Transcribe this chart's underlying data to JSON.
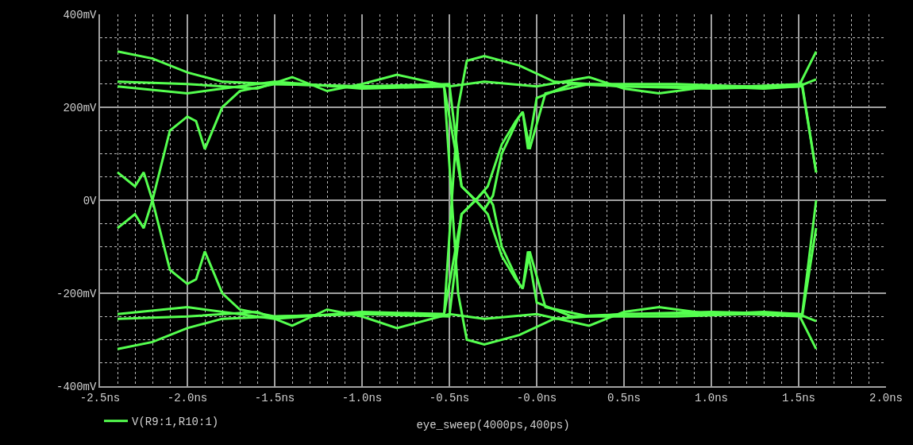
{
  "chart_data": {
    "type": "line",
    "xlabel": "eye_sweep(4000ps,400ps)",
    "xlim": [
      -2.5,
      2.0
    ],
    "xticks": [
      {
        "value": -2.5,
        "label": "-2.5ns"
      },
      {
        "value": -2.0,
        "label": "-2.0ns"
      },
      {
        "value": -1.5,
        "label": "-1.5ns"
      },
      {
        "value": -1.0,
        "label": "-1.0ns"
      },
      {
        "value": -0.5,
        "label": "-0.5ns"
      },
      {
        "value": 0,
        "label": "-0.0ns"
      },
      {
        "value": 0.5,
        "label": "0.5ns"
      },
      {
        "value": 1.0,
        "label": "1.0ns"
      },
      {
        "value": 1.5,
        "label": "1.5ns"
      },
      {
        "value": 2.0,
        "label": "2.0ns"
      }
    ],
    "ylim": [
      -400,
      400
    ],
    "yticks": [
      {
        "value": -400,
        "label": "-400mV"
      },
      {
        "value": -200,
        "label": "-200mV"
      },
      {
        "value": 0,
        "label": "0V"
      },
      {
        "value": 200,
        "label": "200mV"
      },
      {
        "value": 400,
        "label": "400mV"
      }
    ],
    "grid": true,
    "legend": "bottom left",
    "marker": "none",
    "line_style": "solid",
    "series": [
      {
        "name": "V(R9:1,R10:1)",
        "color": "#55ff4f",
        "x": [
          -2.4,
          -2.0,
          -1.6,
          -1.4,
          -1.2,
          -1.0,
          -0.8,
          -0.5,
          -0.3,
          0.0,
          0.3,
          0.5,
          0.7,
          1.0,
          1.3,
          1.5,
          1.6
        ],
        "values": [
          255,
          250,
          240,
          265,
          235,
          250,
          270,
          245,
          255,
          245,
          265,
          240,
          230,
          245,
          240,
          245,
          260
        ]
      },
      {
        "color": "#55ff4f",
        "x": [
          -2.4,
          -2.0,
          -1.6,
          -1.4,
          -1.2,
          -1.0,
          -0.8,
          -0.5,
          -0.3,
          0.0,
          0.3,
          0.5,
          0.7,
          1.0,
          1.3,
          1.5,
          1.6
        ],
        "values": [
          -255,
          -250,
          -240,
          -270,
          -235,
          -250,
          -275,
          -245,
          -255,
          -245,
          -270,
          -240,
          -230,
          -245,
          -240,
          -245,
          -260
        ]
      },
      {
        "color": "#55ff4f",
        "x": [
          -2.4,
          -2.2,
          -2.0,
          -1.8,
          -1.5,
          -1.0,
          -0.53,
          -0.45,
          -0.4,
          -0.3,
          -0.1,
          0.1,
          0.5,
          1.0,
          1.52,
          1.6
        ],
        "values": [
          320,
          305,
          275,
          255,
          250,
          245,
          245,
          -200,
          -300,
          -310,
          -290,
          -255,
          -245,
          -245,
          -245,
          0
        ]
      },
      {
        "color": "#55ff4f",
        "x": [
          -2.4,
          -2.2,
          -2.0,
          -1.8,
          -1.5,
          -1.0,
          -0.53,
          -0.45,
          -0.4,
          -0.3,
          -0.1,
          0.1,
          0.5,
          1.0,
          1.52,
          1.6
        ],
        "values": [
          -320,
          -305,
          -275,
          -255,
          -250,
          -245,
          -245,
          200,
          300,
          310,
          290,
          255,
          245,
          245,
          245,
          60
        ]
      },
      {
        "color": "#55ff4f",
        "x": [
          -2.4,
          -2.3,
          -2.25,
          -2.2,
          -2.1,
          -2.0,
          -1.95,
          -1.9,
          -1.8,
          -1.7,
          -1.5,
          -1.0,
          -0.5,
          -0.43,
          -0.35,
          -0.3,
          -0.25,
          -0.2,
          -0.1,
          -0.08,
          -0.05,
          0.0,
          0.2,
          0.5,
          1.0,
          1.5,
          1.6
        ],
        "values": [
          60,
          30,
          60,
          0,
          -150,
          -180,
          -170,
          -110,
          -200,
          -235,
          -250,
          -245,
          -250,
          -30,
          0,
          20,
          -10,
          -100,
          -180,
          -190,
          -110,
          -220,
          -250,
          -245,
          -240,
          -245,
          -320
        ]
      },
      {
        "color": "#55ff4f",
        "x": [
          -2.4,
          -2.3,
          -2.25,
          -2.2,
          -2.1,
          -2.0,
          -1.95,
          -1.9,
          -1.8,
          -1.7,
          -1.5,
          -1.0,
          -0.5,
          -0.43,
          -0.35,
          -0.3,
          -0.25,
          -0.2,
          -0.1,
          -0.08,
          -0.05,
          0.0,
          0.2,
          0.5,
          1.0,
          1.5,
          1.6
        ],
        "values": [
          -60,
          -30,
          -60,
          0,
          150,
          180,
          170,
          110,
          200,
          235,
          250,
          245,
          250,
          30,
          0,
          -20,
          10,
          100,
          180,
          190,
          110,
          220,
          250,
          245,
          240,
          245,
          320
        ]
      },
      {
        "color": "#55ff4f",
        "x": [
          -2.4,
          -2.0,
          -1.5,
          -1.0,
          -0.53,
          -0.43,
          -0.35,
          -0.28,
          -0.2,
          -0.12,
          -0.08,
          -0.04,
          0.05,
          0.3,
          0.8,
          1.2,
          1.52,
          1.6
        ],
        "values": [
          245,
          230,
          255,
          240,
          245,
          30,
          0,
          -30,
          -120,
          -170,
          -190,
          -110,
          -230,
          -250,
          -250,
          -245,
          -250,
          -60
        ]
      },
      {
        "color": "#55ff4f",
        "x": [
          -2.4,
          -2.0,
          -1.5,
          -1.0,
          -0.53,
          -0.43,
          -0.35,
          -0.28,
          -0.2,
          -0.12,
          -0.08,
          -0.04,
          0.05,
          0.3,
          0.8,
          1.2,
          1.52,
          1.6
        ],
        "values": [
          -245,
          -230,
          -255,
          -240,
          -245,
          -30,
          0,
          30,
          120,
          170,
          190,
          110,
          230,
          250,
          250,
          245,
          250,
          60
        ]
      }
    ]
  }
}
